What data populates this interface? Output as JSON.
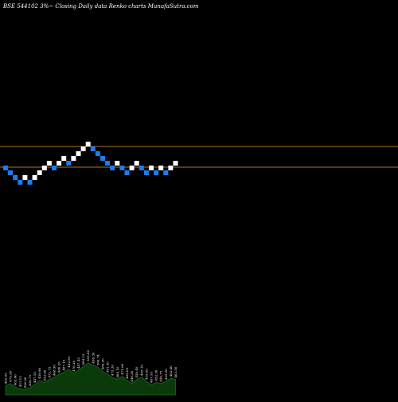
{
  "chart_data": {
    "type": "renko",
    "title": "BSE 544102  3%~  Closing Daily data  Renko  charts MunafaSutra.com",
    "colors": {
      "background": "#000000",
      "up_brick": "#ffffff",
      "down_brick": "#1e7bf0",
      "reference_line": "#b5722a",
      "volume_fill": "#0a3a0a",
      "volume_stroke": "#1e6a1e",
      "text": "#ffffff"
    },
    "bricks": [
      {
        "dir": "down",
        "level": 0
      },
      {
        "dir": "down",
        "level": -1
      },
      {
        "dir": "down",
        "level": -2
      },
      {
        "dir": "down",
        "level": -3
      },
      {
        "dir": "up",
        "level": -2
      },
      {
        "dir": "down",
        "level": -3
      },
      {
        "dir": "up",
        "level": -2
      },
      {
        "dir": "up",
        "level": -1
      },
      {
        "dir": "up",
        "level": 0
      },
      {
        "dir": "up",
        "level": 1
      },
      {
        "dir": "down",
        "level": 0
      },
      {
        "dir": "up",
        "level": 1
      },
      {
        "dir": "up",
        "level": 2
      },
      {
        "dir": "down",
        "level": 1
      },
      {
        "dir": "up",
        "level": 2
      },
      {
        "dir": "up",
        "level": 3
      },
      {
        "dir": "up",
        "level": 4
      },
      {
        "dir": "up",
        "level": 5
      },
      {
        "dir": "down",
        "level": 4
      },
      {
        "dir": "down",
        "level": 3
      },
      {
        "dir": "down",
        "level": 2
      },
      {
        "dir": "down",
        "level": 1
      },
      {
        "dir": "down",
        "level": 0
      },
      {
        "dir": "up",
        "level": 1
      },
      {
        "dir": "down",
        "level": 0
      },
      {
        "dir": "down",
        "level": -1
      },
      {
        "dir": "up",
        "level": 0
      },
      {
        "dir": "up",
        "level": 1
      },
      {
        "dir": "down",
        "level": 0
      },
      {
        "dir": "down",
        "level": -1
      },
      {
        "dir": "up",
        "level": 0
      },
      {
        "dir": "down",
        "level": -1
      },
      {
        "dir": "up",
        "level": 0
      },
      {
        "dir": "down",
        "level": -1
      },
      {
        "dir": "up",
        "level": 0
      },
      {
        "dir": "up",
        "level": 1
      }
    ],
    "reference_lines": [
      {
        "level": 4,
        "label": ""
      },
      {
        "level": 0,
        "label": ""
      }
    ],
    "volume_labels": [
      "482.85",
      "479.50",
      "463.40",
      "451.15",
      "436.00",
      "439.75",
      "447.10",
      "459.90",
      "453.60",
      "472.75",
      "468.90",
      "480.20",
      "487.10",
      "492.95",
      "476.20",
      "487.45",
      "494.15",
      "505.60",
      "498.30",
      "500.74",
      "488.20",
      "481.50",
      "472.30",
      "466.10",
      "471.60",
      "462.05",
      "448.30",
      "458.40",
      "465.10",
      "455.60",
      "447.10",
      "452.30",
      "449.75",
      "455.20",
      "462.40",
      "463.50"
    ],
    "volume_values": [
      18,
      22,
      15,
      12,
      10,
      14,
      20,
      28,
      24,
      30,
      34,
      40,
      44,
      50,
      42,
      48,
      55,
      62,
      58,
      54,
      46,
      40,
      34,
      30,
      36,
      28,
      22,
      30,
      34,
      26,
      20,
      24,
      22,
      26,
      32,
      30
    ]
  }
}
